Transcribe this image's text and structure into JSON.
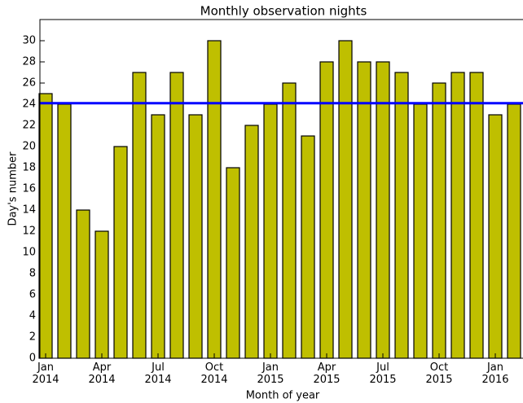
{
  "chart_data": {
    "type": "bar",
    "title": "Monthly observation nights",
    "x_label": "Month of year",
    "y_label": "Day's number",
    "categories": [
      "Jan\n2014",
      null,
      null,
      "Apr\n2014",
      null,
      null,
      "Jul\n2014",
      null,
      null,
      "Oct\n2014",
      null,
      null,
      "Jan\n2015",
      null,
      null,
      "Apr\n2015",
      null,
      null,
      "Jul\n2015",
      null,
      null,
      "Oct\n2015",
      null,
      null,
      "Jan\n2016",
      null
    ],
    "values": [
      25,
      24,
      14,
      12,
      20,
      27,
      23,
      27,
      23,
      30,
      18,
      22,
      24,
      26,
      21,
      28,
      30,
      28,
      28,
      27,
      24,
      26,
      27,
      27,
      23,
      24
    ],
    "color": "#bfbf00",
    "reference_line": {
      "value": 24.1,
      "color": "#0000ff"
    },
    "ylim": [
      0,
      32
    ],
    "yticks": [
      0,
      2,
      4,
      6,
      8,
      10,
      12,
      14,
      16,
      18,
      20,
      22,
      24,
      26,
      28,
      30
    ]
  }
}
